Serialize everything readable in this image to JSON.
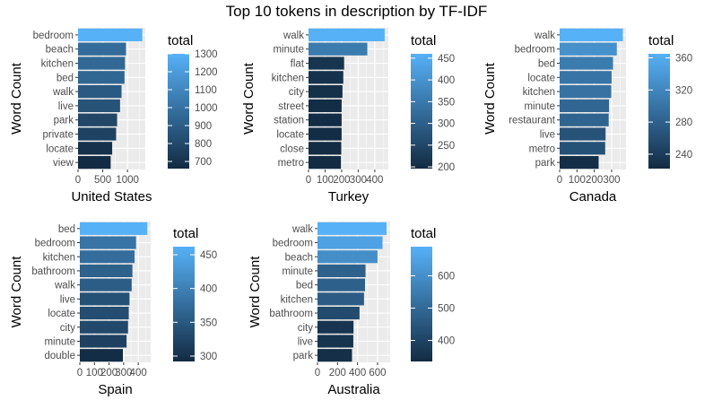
{
  "title": "Top 10 tokens in description by TF-IDF",
  "ylabel": "Word Count",
  "legend_title": "total",
  "colors": {
    "low": "#132B43",
    "high": "#56B1F7",
    "panel_bg": "#EBEBEB",
    "grid": "#FFFFFF",
    "text": "#4D4D4D"
  },
  "chart_data": [
    {
      "type": "bar",
      "orientation": "horizontal",
      "xlabel": "United States",
      "ylabel": "Word Count",
      "categories": [
        "bedroom",
        "beach",
        "kitchen",
        "bed",
        "walk",
        "live",
        "park",
        "private",
        "locate",
        "view"
      ],
      "values": [
        1300,
        970,
        950,
        940,
        880,
        850,
        790,
        770,
        690,
        660
      ],
      "xlim": [
        0,
        1360
      ],
      "xticks": [
        0,
        500,
        1000
      ],
      "xtick_labels": [
        "0",
        "500",
        "1000"
      ],
      "legend_range": [
        660,
        1300
      ],
      "legend_ticks": [
        700,
        800,
        900,
        1000,
        1100,
        1200,
        1300
      ],
      "grid": true
    },
    {
      "type": "bar",
      "orientation": "horizontal",
      "xlabel": "Turkey",
      "ylabel": "Word Count",
      "categories": [
        "walk",
        "minute",
        "flat",
        "kitchen",
        "city",
        "street",
        "station",
        "locate",
        "close",
        "metro"
      ],
      "values": [
        460,
        355,
        215,
        210,
        205,
        200,
        200,
        200,
        198,
        196
      ],
      "xlim": [
        0,
        482
      ],
      "xticks": [
        0,
        100,
        200,
        300,
        400
      ],
      "xtick_labels": [
        "0",
        "100",
        "200",
        "300",
        "400"
      ],
      "legend_range": [
        196,
        460
      ],
      "legend_ticks": [
        200,
        250,
        300,
        350,
        400,
        450
      ],
      "grid": true
    },
    {
      "type": "bar",
      "orientation": "horizontal",
      "xlabel": "Canada",
      "ylabel": "Word Count",
      "categories": [
        "walk",
        "bedroom",
        "bed",
        "locate",
        "kitchen",
        "minute",
        "restaurant",
        "live",
        "metro",
        "park"
      ],
      "values": [
        365,
        330,
        308,
        300,
        298,
        285,
        283,
        265,
        263,
        225
      ],
      "xlim": [
        0,
        383
      ],
      "xticks": [
        0,
        100,
        200,
        300
      ],
      "xtick_labels": [
        "0",
        "100",
        "200",
        "300"
      ],
      "legend_range": [
        222,
        365
      ],
      "legend_ticks": [
        240,
        280,
        320,
        360
      ],
      "grid": true
    },
    {
      "type": "bar",
      "orientation": "horizontal",
      "xlabel": "Spain",
      "ylabel": "Word Count",
      "categories": [
        "bed",
        "bedroom",
        "kitchen",
        "bathroom",
        "walk",
        "live",
        "locate",
        "city",
        "minute",
        "double"
      ],
      "values": [
        462,
        385,
        375,
        360,
        355,
        340,
        335,
        330,
        320,
        295
      ],
      "xlim": [
        0,
        485
      ],
      "xticks": [
        0,
        100,
        200,
        300,
        400
      ],
      "xtick_labels": [
        "0",
        "100",
        "200",
        "300",
        "400"
      ],
      "legend_range": [
        292,
        462
      ],
      "legend_ticks": [
        300,
        350,
        400,
        450
      ],
      "grid": true
    },
    {
      "type": "bar",
      "orientation": "horizontal",
      "xlabel": "Australia",
      "ylabel": "Word Count",
      "categories": [
        "walk",
        "bedroom",
        "beach",
        "minute",
        "bed",
        "kitchen",
        "bathroom",
        "city",
        "live",
        "park"
      ],
      "values": [
        690,
        650,
        600,
        480,
        475,
        465,
        420,
        360,
        358,
        345
      ],
      "xlim": [
        0,
        726
      ],
      "xticks": [
        0,
        200,
        400,
        600
      ],
      "xtick_labels": [
        "0",
        "200",
        "400",
        "600"
      ],
      "legend_range": [
        335,
        690
      ],
      "legend_ticks": [
        400,
        500,
        600
      ],
      "grid": true
    }
  ]
}
